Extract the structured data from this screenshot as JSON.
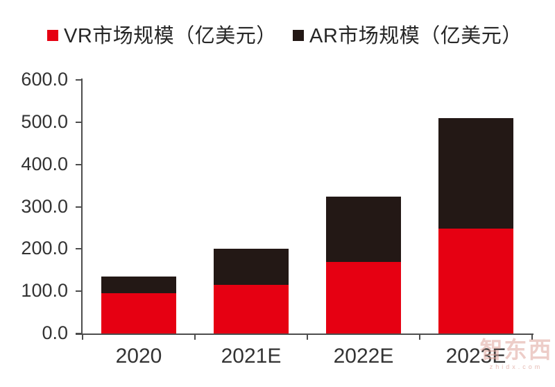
{
  "legend": {
    "items": [
      {
        "key": "vr",
        "label": "VR市场规模（亿美元）",
        "color": "#e60012"
      },
      {
        "key": "ar",
        "label": "AR市场规模（亿美元）",
        "color": "#231815"
      }
    ]
  },
  "watermark": {
    "brand": "智东西",
    "domain": "zhidx.com"
  },
  "chart_data": {
    "type": "bar",
    "stacked": true,
    "title": "",
    "xlabel": "",
    "ylabel": "",
    "categories": [
      "2020",
      "2021E",
      "2022E",
      "2023E"
    ],
    "series": [
      {
        "key": "vr",
        "name": "VR市场规模（亿美元）",
        "color": "#e60012",
        "values": [
          95,
          115,
          170,
          248
        ]
      },
      {
        "key": "ar",
        "name": "AR市场规模（亿美元）",
        "color": "#231815",
        "values": [
          40,
          85,
          154,
          262
        ]
      }
    ],
    "stack_totals": [
      135,
      200,
      324,
      510
    ],
    "ylim": [
      0,
      600
    ],
    "ytick_step": 100,
    "ytick_labels": [
      "0.0",
      "100.0",
      "200.0",
      "300.0",
      "400.0",
      "500.0",
      "600.0"
    ],
    "grid": false,
    "legend_position": "top-left"
  }
}
